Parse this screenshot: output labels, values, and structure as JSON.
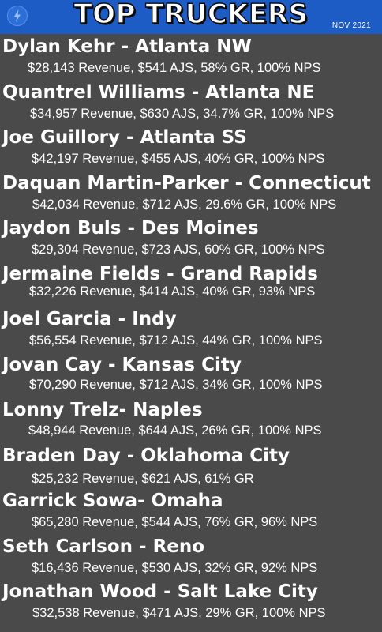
{
  "header": {
    "title": "TOP TRUCKERS",
    "date": "NOV 2021",
    "logo_icon": "lightning-bolt-icon",
    "background_color": "#1c5cc4"
  },
  "truckers": [
    {
      "name": "Dylan Kehr - Atlanta NW",
      "stats": "$28,143 Revenue, $541 AJS, 58% GR, 100% NPS"
    },
    {
      "name": "Quantrel Williams - Atlanta NE",
      "stats": "$34,957 Revenue, $630 AJS, 34.7% GR, 100% NPS"
    },
    {
      "name": "Joe Guillory - Atlanta SS",
      "stats": "$42,197 Revenue, $455 AJS, 40% GR, 100% NPS"
    },
    {
      "name": "Daquan Martin-Parker - Connecticut",
      "stats": "$42,034 Revenue, $712 AJS, 29.6% GR, 100% NPS"
    },
    {
      "name": "Jaydon Buls - Des Moines",
      "stats": "$29,304 Revenue, $723 AJS, 60% GR, 100% NPS"
    },
    {
      "name": "Jermaine Fields - Grand Rapids",
      "stats": "$32,226 Revenue, $414 AJS, 40% GR, 93% NPS"
    },
    {
      "name": "Joel Garcia - Indy",
      "stats": "$56,554 Revenue, $712 AJS, 44% GR, 100% NPS"
    },
    {
      "name": "Jovan Cay - Kansas City",
      "stats": "$70,290 Revenue, $712 AJS, 34% GR, 100% NPS"
    },
    {
      "name": "Lonny Trelz- Naples",
      "stats": "$48,944 Revenue, $644 AJS, 26% GR, 100% NPS"
    },
    {
      "name": "Braden Day - Oklahoma City",
      "stats": "$25,232 Revenue, $621 AJS, 61% GR"
    },
    {
      "name": "Garrick Sowa- Omaha",
      "stats": "$65,280 Revenue, $544 AJS, 76% GR, 96% NPS"
    },
    {
      "name": "Seth Carlson - Reno",
      "stats": "$16,436 Revenue, $530 AJS, 32% GR, 92% NPS"
    },
    {
      "name": "Jonathan Wood - Salt Lake City",
      "stats": "$32,538 Revenue, $471 AJS, 29% GR, 100% NPS"
    }
  ]
}
